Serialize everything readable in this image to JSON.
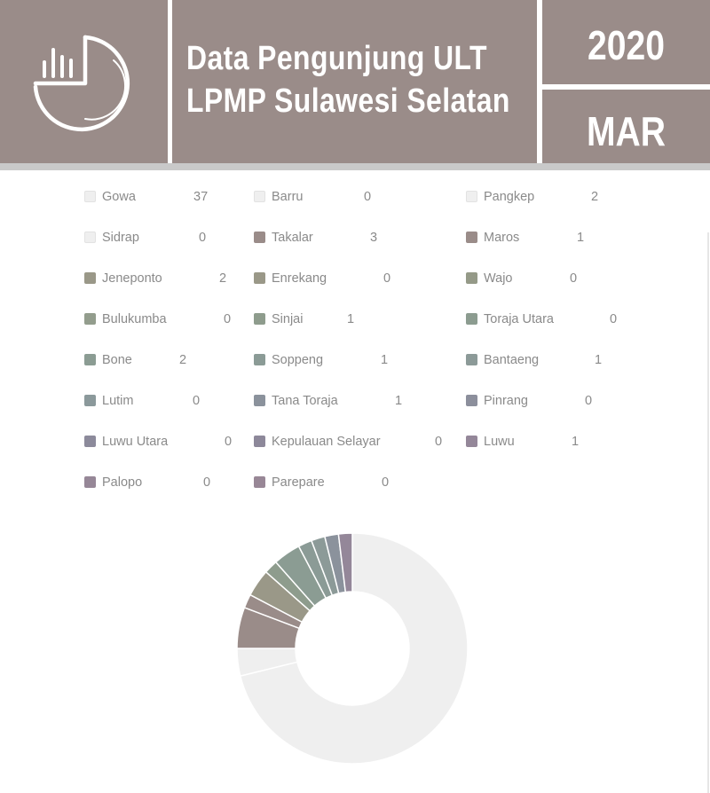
{
  "header": {
    "title_line1": "Data Pengunjung ULT",
    "title_line2": "LPMP Sulawesi Selatan",
    "year": "2020",
    "month": "MAR",
    "logo_icon": "chart-clock-icon",
    "panel_color": "#9a8c89"
  },
  "chart_data": {
    "type": "pie",
    "variant": "doughnut",
    "legend_position": "top",
    "categories": [
      "Gowa",
      "Barru",
      "Pangkep",
      "Sidrap",
      "Takalar",
      "Maros",
      "Jeneponto",
      "Enrekang",
      "Wajo",
      "Bulukumba",
      "Sinjai",
      "Toraja Utara",
      "Bone",
      "Soppeng",
      "Bantaeng",
      "Lutim",
      "Tana Toraja",
      "Pinrang",
      "Luwu Utara",
      "Kepulauan Selayar",
      "Luwu",
      "Palopo",
      "Parepare"
    ],
    "values": [
      37,
      0,
      2,
      0,
      3,
      1,
      2,
      0,
      0,
      0,
      1,
      0,
      2,
      1,
      1,
      0,
      1,
      0,
      0,
      0,
      1,
      0,
      0
    ],
    "colors": [
      "#efefef",
      "#efefef",
      "#efefef",
      "#efefef",
      "#9a8c89",
      "#9a8c89",
      "#9a9888",
      "#9a9888",
      "#959a88",
      "#939d8d",
      "#8e9c8d",
      "#8c9c90",
      "#8b9c93",
      "#8b9b96",
      "#8c9a98",
      "#8b999b",
      "#8b929c",
      "#8c8f9c",
      "#8c8a9b",
      "#8d889a",
      "#948799",
      "#968797",
      "#988796"
    ]
  }
}
